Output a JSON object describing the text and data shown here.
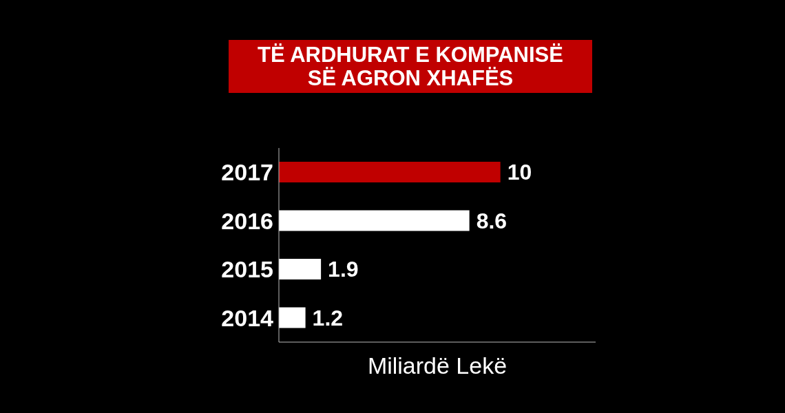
{
  "chart_data": {
    "type": "bar",
    "orientation": "horizontal",
    "title": "TË ARDHURAT E KOMPANISË SË AGRON XHAFËS",
    "xlabel": "Miliardë Lekë",
    "categories": [
      "2017",
      "2016",
      "2015",
      "2014"
    ],
    "values": [
      10,
      8.6,
      1.9,
      1.2
    ],
    "colors": [
      "#c00000",
      "#ffffff",
      "#ffffff",
      "#ffffff"
    ],
    "xlim": [
      0,
      14.3
    ],
    "tick_labels": "y",
    "data_labels": true
  }
}
